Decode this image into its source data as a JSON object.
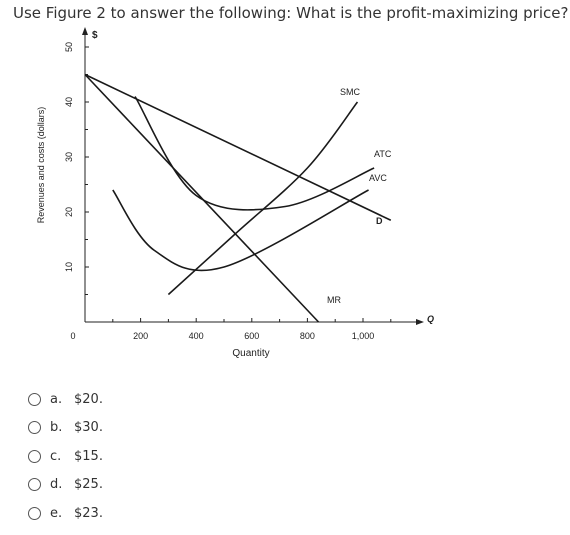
{
  "question": {
    "text": "Use Figure 2 to answer the following: What is the profit-maximizing price?"
  },
  "figure": {
    "y_unit_label": "$",
    "y_axis_title": "Revenues and costs (dollars)",
    "x_axis_title": "Quantity",
    "x_axis_symbol": "Q",
    "curve_labels": {
      "smc": "SMC",
      "atc": "ATC",
      "avc": "AVC",
      "d": "D",
      "mr": "MR"
    }
  },
  "chart_data": {
    "type": "line",
    "xlabel": "Quantity",
    "ylabel": "Revenues and costs (dollars)",
    "x_ticks": [
      "0",
      "200",
      "400",
      "600",
      "800",
      "1,000"
    ],
    "y_ticks": [
      "10",
      "20",
      "30",
      "40",
      "50"
    ],
    "xlim": [
      0,
      1200
    ],
    "ylim": [
      0,
      50
    ],
    "series": [
      {
        "name": "D",
        "x": [
          0,
          1100
        ],
        "y": [
          45,
          18.5
        ]
      },
      {
        "name": "MR",
        "x": [
          0,
          840
        ],
        "y": [
          45,
          0
        ]
      },
      {
        "name": "SMC",
        "x": [
          300,
          540,
          800,
          980
        ],
        "y": [
          5,
          16,
          28,
          40
        ]
      },
      {
        "name": "ATC",
        "x": [
          180,
          400,
          720,
          1040
        ],
        "y": [
          41,
          23,
          21,
          28
        ]
      },
      {
        "name": "AVC",
        "x": [
          100,
          250,
          500,
          1020
        ],
        "y": [
          24,
          13,
          10,
          24
        ]
      }
    ]
  },
  "options": [
    {
      "letter": "a.",
      "value": "$20."
    },
    {
      "letter": "b.",
      "value": "$30."
    },
    {
      "letter": "c.",
      "value": "$15."
    },
    {
      "letter": "d.",
      "value": "$25."
    },
    {
      "letter": "e.",
      "value": "$23."
    }
  ]
}
